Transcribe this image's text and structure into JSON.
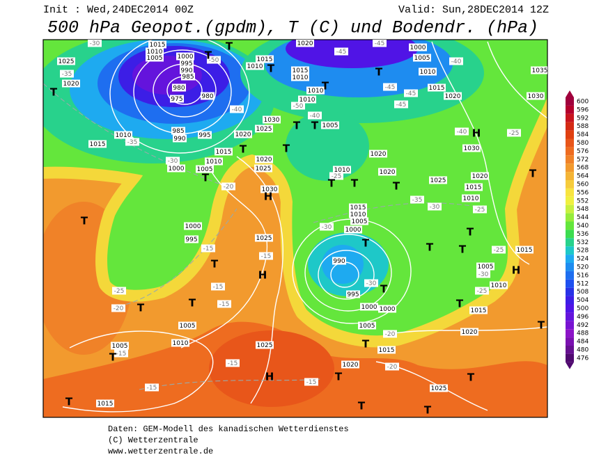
{
  "header": {
    "init": "Init : Wed,24DEC2014 00Z",
    "valid": "Valid: Sun,28DEC2014 12Z",
    "title": "500 hPa Geopot.(gpdm), T (C) und Bodendr. (hPa)"
  },
  "colorbar": {
    "ticks": [
      600,
      596,
      592,
      588,
      584,
      580,
      576,
      572,
      568,
      564,
      560,
      556,
      552,
      548,
      544,
      540,
      536,
      532,
      528,
      524,
      520,
      516,
      512,
      508,
      504,
      500,
      496,
      492,
      488,
      484,
      480,
      476
    ],
    "colors": [
      "#a0003c",
      "#b4002c",
      "#c8141e",
      "#d42a14",
      "#e04010",
      "#e8561a",
      "#ee6c20",
      "#f08228",
      "#f29a2e",
      "#f4b436",
      "#f6cc3c",
      "#f8e440",
      "#f0f040",
      "#c8f040",
      "#96ec3c",
      "#64e63c",
      "#3cdc50",
      "#28d28c",
      "#1ec8c8",
      "#1eaaf0",
      "#1e8cf0",
      "#1e6ef0",
      "#1e50f0",
      "#2832e6",
      "#3c1ee6",
      "#5014e6",
      "#6414dc",
      "#7814d2",
      "#8c14c8",
      "#7a10b0",
      "#661090",
      "#500a70"
    ]
  },
  "map": {
    "pressure_labels": [
      "1025",
      "1020",
      "1015",
      "1010",
      "1005",
      "1000",
      "995",
      "990",
      "985",
      "980",
      "975",
      "980",
      "985",
      "990",
      "995",
      "1010",
      "1015",
      "1000",
      "1005",
      "1010",
      "1015",
      "1020",
      "1025",
      "1030",
      "1020",
      "1025",
      "1030",
      "1015",
      "1010",
      "1015",
      "1010",
      "1010",
      "1010",
      "1005",
      "1020",
      "1000",
      "1005",
      "1010",
      "1015",
      "1020",
      "1035",
      "1030",
      "1030",
      "1020",
      "1020",
      "1010",
      "1025",
      "1020",
      "1015",
      "1010",
      "1015",
      "1010",
      "1005",
      "1000",
      "990",
      "995",
      "1000",
      "1000",
      "1005",
      "1015",
      "1020",
      "1025",
      "1010",
      "1005",
      "1005",
      "1015",
      "1025",
      "1020",
      "1015",
      "1010",
      "1005",
      "1015",
      "1000",
      "995",
      "1025"
    ],
    "temperature_labels": [
      "-35",
      "-30",
      "-35",
      "-30",
      "-20",
      "-15",
      "-15",
      "-15",
      "-15",
      "-15",
      "-15",
      "-15",
      "-25",
      "-20",
      "-25",
      "-30",
      "-30",
      "-35",
      "-30",
      "-25",
      "-25",
      "-30",
      "-25",
      "-20",
      "-20",
      "-15",
      "-25",
      "-40",
      "-40",
      "-45",
      "-45",
      "-50",
      "-45",
      "-45",
      "-45",
      "-40",
      "-40",
      "-50"
    ],
    "symbols": [
      "T",
      "T",
      "T",
      "T",
      "T",
      "T",
      "T",
      "T",
      "T",
      "T",
      "T",
      "T",
      "T",
      "T",
      "T",
      "T",
      "T",
      "T",
      "T",
      "T",
      "T",
      "T",
      "T",
      "T",
      "T",
      "T",
      "T",
      "T",
      "T",
      "T",
      "T",
      "T",
      "T",
      "H",
      "H",
      "H",
      "H",
      "H"
    ]
  },
  "footer": {
    "lines": [
      "Daten: GEM-Modell des kanadischen Wetterdienstes",
      "(C) Wetterzentrale",
      "www.wetterzentrale.de"
    ]
  }
}
